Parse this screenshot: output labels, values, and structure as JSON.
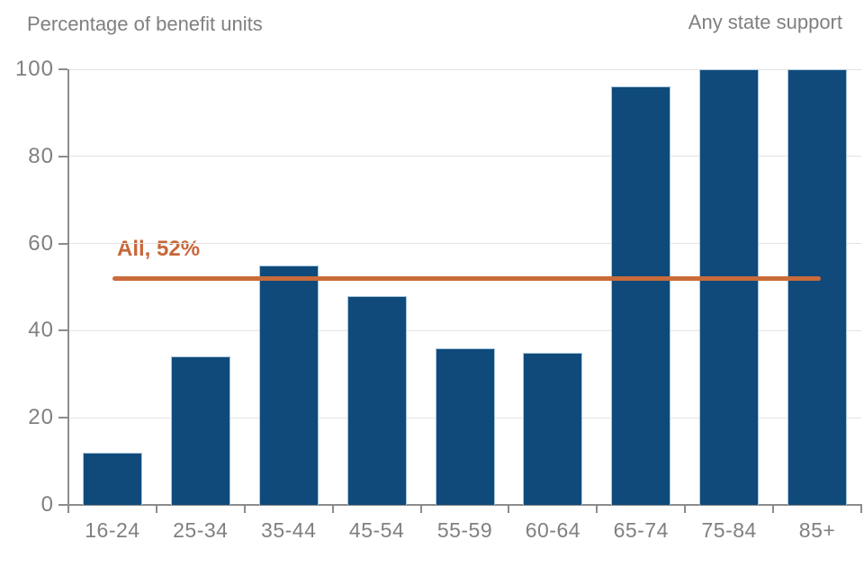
{
  "header": {
    "left_title": "Percentage of benefit units",
    "right_title": "Any state support"
  },
  "chart_data": {
    "type": "bar",
    "title": "Any state support",
    "axis_note": "Percentage of benefit units",
    "categories": [
      "16-24",
      "25-34",
      "35-44",
      "45-54",
      "55-59",
      "60-64",
      "65-74",
      "75-84",
      "85+"
    ],
    "values": [
      12,
      34,
      55,
      48,
      36,
      35,
      96,
      100,
      100
    ],
    "xlabel": "",
    "ylabel": "Percentage of benefit units",
    "ylim": [
      0,
      100
    ],
    "yticks": [
      0,
      20,
      40,
      60,
      80,
      100
    ],
    "grid": "horizontal",
    "legend": "none",
    "reference_line": {
      "label": "All, 52%",
      "value": 52
    },
    "colors": {
      "bar_fill": "#0f4a7b",
      "bar_border": "#a9c7db",
      "reference": "#c96b3a",
      "reference_label": "#c8673a",
      "axis": "#8c8c8c",
      "grid": "#e3e3e3",
      "text": "#808080"
    }
  }
}
